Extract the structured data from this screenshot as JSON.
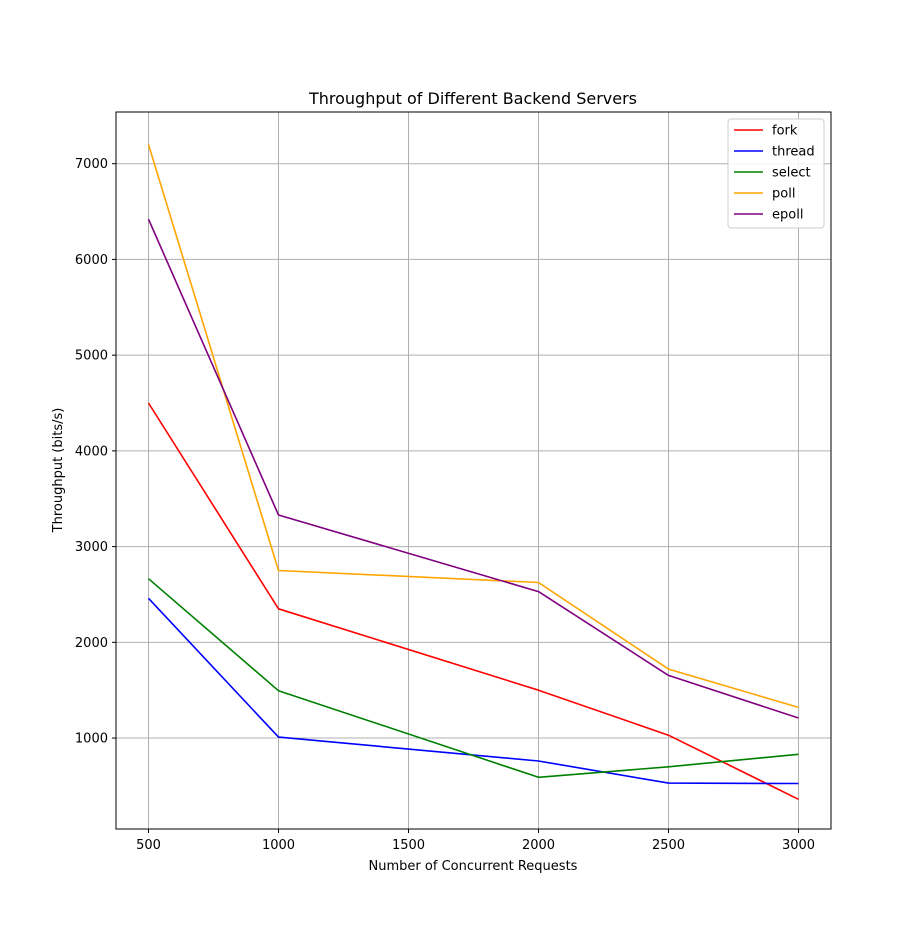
{
  "chart_data": {
    "type": "line",
    "title": "Throughput of Different Backend Servers",
    "xlabel": "Number of Concurrent Requests",
    "ylabel": "Throughput (bits/s)",
    "x": [
      500,
      1000,
      2000,
      2500,
      3000
    ],
    "xticks": [
      500,
      1000,
      1500,
      2000,
      2500,
      3000
    ],
    "yticks": [
      1000,
      2000,
      3000,
      4000,
      5000,
      6000,
      7000
    ],
    "xlim": [
      375,
      3125
    ],
    "ylim": [
      50,
      7540
    ],
    "grid": true,
    "legend_position": "top-right",
    "series": [
      {
        "name": "fork",
        "color": "#ff0000",
        "values": [
          4500,
          2350,
          1500,
          1030,
          360
        ]
      },
      {
        "name": "thread",
        "color": "#0000ff",
        "values": [
          2460,
          1010,
          760,
          530,
          525
        ]
      },
      {
        "name": "select",
        "color": "#008000",
        "values": [
          2665,
          1495,
          590,
          700,
          830
        ]
      },
      {
        "name": "poll",
        "color": "#ffa500",
        "values": [
          7200,
          2750,
          2625,
          1720,
          1320
        ]
      },
      {
        "name": "epoll",
        "color": "#800080",
        "values": [
          6420,
          3330,
          2530,
          1655,
          1210
        ]
      }
    ]
  }
}
